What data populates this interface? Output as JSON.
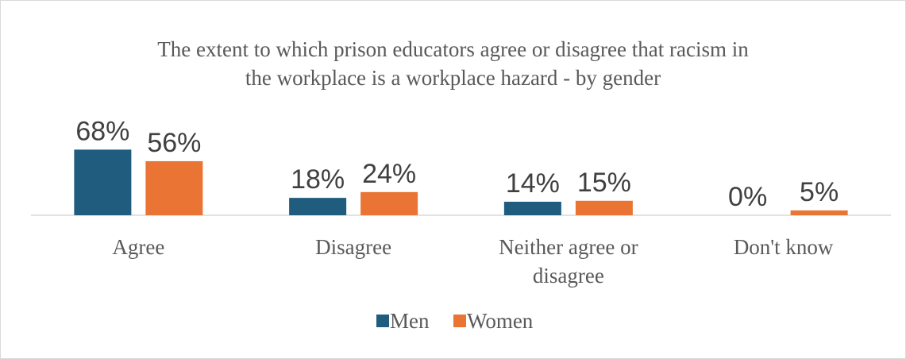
{
  "chart_data": {
    "type": "bar",
    "title": "The extent to which prison educators agree or disagree that racism in the workplace is a workplace hazard - by gender",
    "title_lines": [
      "The extent to which prison educators agree or disagree that racism in",
      "the workplace is a workplace hazard - by gender"
    ],
    "categories": [
      "Agree",
      "Disagree",
      "Neither agree or disagree",
      "Don't know"
    ],
    "category_lines": [
      [
        "Agree"
      ],
      [
        "Disagree"
      ],
      [
        "Neither agree or",
        "disagree"
      ],
      [
        "Don't know"
      ]
    ],
    "series": [
      {
        "name": "Men",
        "color": "#1f5c7e",
        "values": [
          68,
          18,
          14,
          0
        ],
        "labels": [
          "68%",
          "18%",
          "14%",
          "0%"
        ]
      },
      {
        "name": "Women",
        "color": "#ea7433",
        "values": [
          56,
          24,
          15,
          5
        ],
        "labels": [
          "56%",
          "24%",
          "15%",
          "5%"
        ]
      }
    ],
    "unit": "%",
    "ylim": [
      0,
      100
    ],
    "grid": false,
    "legend_position": "bottom",
    "axis_color": "#d9d9d9"
  }
}
